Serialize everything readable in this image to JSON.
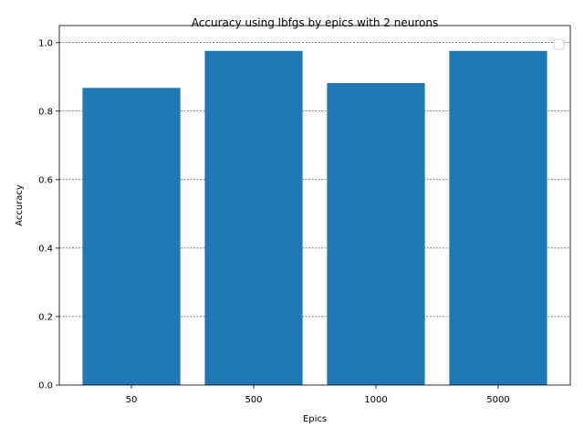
{
  "chart_data": {
    "type": "bar",
    "title": "Accuracy using lbfgs by epics with 2 neurons",
    "xlabel": "Epics",
    "ylabel": "Accuracy",
    "categories": [
      "50",
      "500",
      "1000",
      "5000"
    ],
    "values": [
      0.868,
      0.976,
      0.882,
      0.976
    ],
    "ylim": [
      0,
      1.05
    ],
    "yticks": [
      0.0,
      0.2,
      0.4,
      0.6,
      0.8,
      1.0
    ],
    "ytick_labels": [
      "0.0",
      "0.2",
      "0.4",
      "0.6",
      "0.8",
      "1.0"
    ],
    "bar_color": "#1f77b4",
    "grid": "horizontal dashed",
    "legend": "upper right (empty)"
  }
}
